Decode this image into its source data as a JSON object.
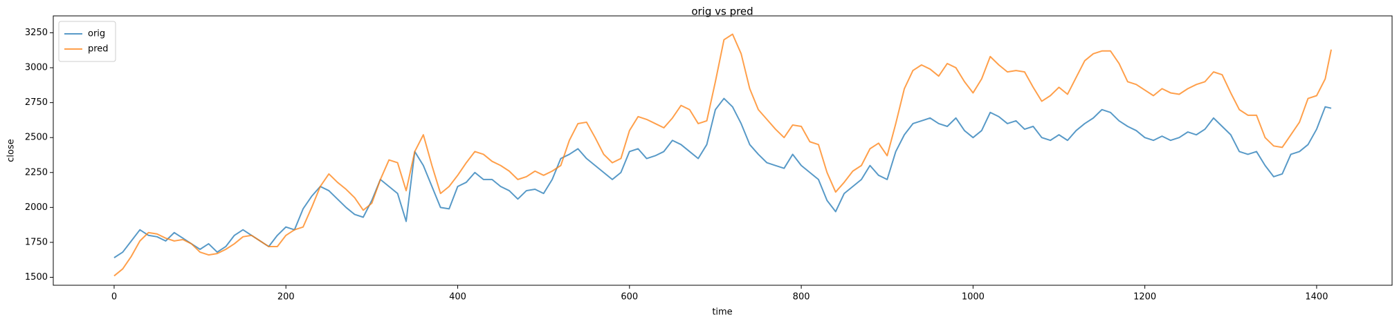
{
  "chart_data": {
    "type": "line",
    "title": "orig vs pred",
    "x_label": "time",
    "y_label": "close",
    "x": [
      0,
      10,
      20,
      30,
      40,
      50,
      60,
      70,
      80,
      90,
      100,
      110,
      120,
      130,
      140,
      150,
      160,
      170,
      180,
      190,
      200,
      210,
      220,
      230,
      240,
      250,
      260,
      270,
      280,
      290,
      300,
      310,
      320,
      330,
      340,
      350,
      360,
      370,
      380,
      390,
      400,
      410,
      420,
      430,
      440,
      450,
      460,
      470,
      480,
      490,
      500,
      510,
      520,
      530,
      540,
      550,
      560,
      570,
      580,
      590,
      600,
      610,
      620,
      630,
      640,
      650,
      660,
      670,
      680,
      690,
      700,
      710,
      720,
      730,
      740,
      750,
      760,
      770,
      780,
      790,
      800,
      810,
      820,
      830,
      840,
      850,
      860,
      870,
      880,
      890,
      900,
      910,
      920,
      930,
      940,
      950,
      960,
      970,
      980,
      990,
      1000,
      1010,
      1020,
      1030,
      1040,
      1050,
      1060,
      1070,
      1080,
      1090,
      1100,
      1110,
      1120,
      1130,
      1140,
      1150,
      1160,
      1170,
      1180,
      1190,
      1200,
      1210,
      1220,
      1230,
      1240,
      1250,
      1260,
      1270,
      1280,
      1290,
      1300,
      1310,
      1320,
      1330,
      1340,
      1350,
      1360,
      1370,
      1380,
      1390,
      1400,
      1410,
      1417
    ],
    "series": [
      {
        "name": "orig",
        "color": "#1f77b4",
        "values": [
          1640,
          1680,
          1760,
          1840,
          1800,
          1790,
          1760,
          1820,
          1780,
          1740,
          1700,
          1740,
          1680,
          1720,
          1800,
          1840,
          1800,
          1760,
          1720,
          1800,
          1860,
          1840,
          1990,
          2080,
          2150,
          2120,
          2060,
          2000,
          1950,
          1930,
          2050,
          2200,
          2150,
          2100,
          1900,
          2400,
          2300,
          2150,
          2000,
          1990,
          2150,
          2180,
          2250,
          2200,
          2200,
          2150,
          2120,
          2060,
          2120,
          2130,
          2100,
          2200,
          2350,
          2380,
          2420,
          2350,
          2300,
          2250,
          2200,
          2250,
          2400,
          2420,
          2350,
          2370,
          2400,
          2480,
          2450,
          2400,
          2350,
          2450,
          2700,
          2780,
          2720,
          2600,
          2450,
          2380,
          2320,
          2300,
          2280,
          2380,
          2300,
          2250,
          2200,
          2050,
          1970,
          2100,
          2150,
          2200,
          2300,
          2230,
          2200,
          2400,
          2520,
          2600,
          2620,
          2640,
          2600,
          2580,
          2640,
          2550,
          2500,
          2550,
          2680,
          2650,
          2600,
          2620,
          2560,
          2580,
          2500,
          2480,
          2520,
          2480,
          2550,
          2600,
          2640,
          2700,
          2680,
          2620,
          2580,
          2550,
          2500,
          2480,
          2510,
          2480,
          2500,
          2540,
          2520,
          2560,
          2640,
          2580,
          2520,
          2400,
          2380,
          2400,
          2300,
          2220,
          2240,
          2380,
          2400,
          2450,
          2560,
          2720,
          2710
        ]
      },
      {
        "name": "pred",
        "color": "#ff7f0e",
        "values": [
          1510,
          1560,
          1650,
          1760,
          1820,
          1810,
          1780,
          1760,
          1770,
          1740,
          1680,
          1660,
          1670,
          1700,
          1740,
          1790,
          1800,
          1760,
          1720,
          1720,
          1800,
          1840,
          1860,
          2000,
          2150,
          2240,
          2180,
          2130,
          2070,
          1980,
          2030,
          2200,
          2340,
          2320,
          2120,
          2400,
          2520,
          2300,
          2100,
          2150,
          2230,
          2320,
          2400,
          2380,
          2330,
          2300,
          2260,
          2200,
          2220,
          2260,
          2230,
          2260,
          2300,
          2480,
          2600,
          2610,
          2500,
          2380,
          2320,
          2350,
          2550,
          2650,
          2630,
          2600,
          2570,
          2640,
          2730,
          2700,
          2600,
          2620,
          2900,
          3200,
          3240,
          3100,
          2850,
          2700,
          2630,
          2560,
          2500,
          2590,
          2580,
          2470,
          2450,
          2250,
          2110,
          2180,
          2260,
          2300,
          2420,
          2460,
          2370,
          2600,
          2850,
          2980,
          3020,
          2990,
          2940,
          3030,
          3000,
          2900,
          2820,
          2920,
          3080,
          3020,
          2970,
          2980,
          2970,
          2860,
          2760,
          2800,
          2860,
          2810,
          2930,
          3050,
          3100,
          3120,
          3120,
          3030,
          2900,
          2880,
          2840,
          2800,
          2850,
          2820,
          2810,
          2850,
          2880,
          2900,
          2970,
          2950,
          2820,
          2700,
          2660,
          2660,
          2500,
          2440,
          2430,
          2520,
          2610,
          2780,
          2800,
          2920,
          3130
        ]
      }
    ],
    "xlim": [
      -70.85,
      1487.85
    ],
    "ylim": [
      1443,
      3371
    ],
    "xticks": [
      0,
      200,
      400,
      600,
      800,
      1000,
      1200,
      1400
    ],
    "yticks": [
      1500,
      1750,
      2000,
      2250,
      2500,
      2750,
      3000,
      3250
    ],
    "legend": "upper left",
    "grid": false
  }
}
